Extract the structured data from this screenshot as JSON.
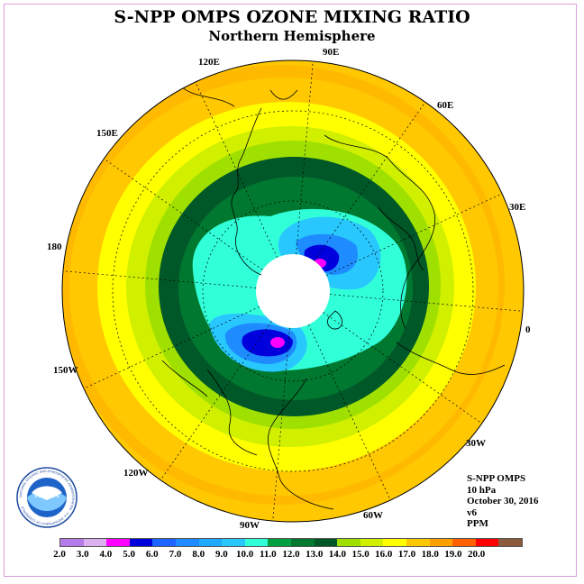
{
  "header": {
    "title": "S-NPP OMPS OZONE MIXING RATIO",
    "subtitle": "Northern Hemisphere"
  },
  "longitude_labels": [
    "90E",
    "60E",
    "30E",
    "0",
    "30W",
    "60W",
    "90W",
    "120W",
    "150W",
    "180",
    "150E",
    "120E"
  ],
  "info": {
    "instrument": "S-NPP OMPS",
    "pressure": "10 hPa",
    "date": "October 30, 2016",
    "version": "v6",
    "units": "PPM"
  },
  "logo": {
    "text": "NOAA",
    "ring_text": "NATIONAL OCEANIC AND ATMOSPHERIC ADMINISTRATION · U.S. DEPARTMENT OF COMMERCE"
  },
  "colorbar": {
    "ticks": [
      "2.0",
      "3.0",
      "4.0",
      "5.0",
      "6.0",
      "7.0",
      "8.0",
      "9.0",
      "10.0",
      "11.0",
      "12.0",
      "13.0",
      "14.0",
      "15.0",
      "16.0",
      "17.0",
      "18.0",
      "19.0",
      "20.0"
    ],
    "colors": [
      "#b57be8",
      "#dcb0f0",
      "#ff00ff",
      "#0000dd",
      "#1e64ff",
      "#1e8cff",
      "#1eaaff",
      "#28c8ff",
      "#30ffd8",
      "#00a040",
      "#007830",
      "#005828",
      "#a0e000",
      "#d0f000",
      "#ffff00",
      "#ffc800",
      "#ffa000",
      "#ff6000",
      "#ff0000",
      "#8b5a3c"
    ]
  },
  "map": {
    "projection": "north-polar-stereographic",
    "polar_night_mask": "white"
  }
}
